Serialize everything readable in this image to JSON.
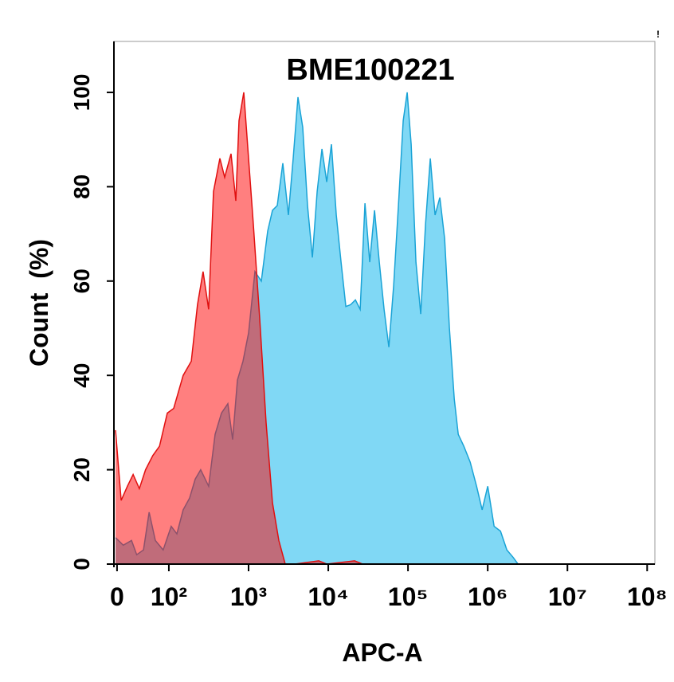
{
  "chart_data": {
    "type": "histogram-overlay",
    "title": "BME100221",
    "annotation": "!",
    "x_label": "APC-A",
    "y_label": "Count  (%)",
    "xscale": "symlog",
    "linthresh": 100,
    "linscale": 0.65,
    "xlim": [
      -6,
      125000000
    ],
    "xticks": [
      0,
      {
        "value": 100,
        "label": "10²"
      },
      {
        "value": 1000,
        "label": "10³"
      },
      {
        "value": 10000,
        "label": "10⁴"
      },
      {
        "value": 100000,
        "label": "10⁵"
      },
      {
        "value": 1000000,
        "label": "10⁶"
      },
      {
        "value": 10000000,
        "label": "10⁷"
      },
      {
        "value": 100000000,
        "label": "10⁸"
      }
    ],
    "ylim": [
      0,
      110.8
    ],
    "yticks": [
      0,
      20,
      40,
      60,
      80,
      100
    ],
    "series": [
      {
        "color": "#1aa3d6",
        "fill": "#80d8f5",
        "x": [
          -3,
          12,
          28,
          38,
          51,
          62,
          74,
          89,
          107,
          126,
          151,
          182,
          214,
          251,
          316,
          380,
          457,
          550,
          631,
          724,
          851,
          1000,
          1202,
          1445,
          1738,
          1995,
          2291,
          2692,
          3162,
          3631,
          4169,
          4786,
          5495,
          6310,
          7244,
          8318,
          9550,
          10960,
          12590,
          14450,
          16600,
          19050,
          21880,
          25120,
          28840,
          33110,
          38020,
          43650,
          50120,
          57540,
          66070,
          75860,
          87100,
          97720,
          109600,
          125900,
          144500,
          166000,
          190500,
          218800,
          251200,
          288400,
          331100,
          380200,
          426600,
          501200,
          602600,
          724400,
          851100,
          1000000,
          1202000,
          1445000,
          1738000,
          2089000,
          2399000
        ],
        "values": [
          5.6,
          4,
          5,
          2,
          3,
          11,
          5,
          3,
          8,
          6.4,
          11.5,
          14,
          18,
          20,
          16.5,
          27.5,
          32,
          34,
          26.4,
          39,
          43,
          49,
          62,
          60,
          70.6,
          75,
          76,
          85,
          74,
          86,
          99,
          92.6,
          76,
          65,
          79,
          88,
          81,
          89,
          74,
          64,
          54.6,
          55,
          56,
          54,
          76.5,
          64,
          75,
          64,
          54,
          46,
          59,
          76,
          94,
          100,
          89,
          64,
          53,
          72,
          86,
          74,
          77.7,
          69,
          50,
          35,
          27.5,
          25,
          21.6,
          16.5,
          11.5,
          16.5,
          8,
          7,
          3,
          1.4,
          0
        ]
      },
      {
        "color": "#e01010",
        "fill": "rgba(255,0,0,0.5)",
        "x": [
          -3,
          8,
          20,
          31,
          43,
          55,
          69,
          82,
          97,
          115,
          151,
          191,
          229,
          269,
          316,
          363,
          437,
          501,
          603,
          692,
          759,
          871,
          1000,
          1148,
          1380,
          1660,
          1995,
          2399,
          2884,
          3802,
          7586,
          9550,
          21380,
          26920
        ],
        "values": [
          28.4,
          13.5,
          16.5,
          19,
          16,
          20,
          23,
          25,
          32,
          33,
          40,
          43,
          55,
          62,
          54,
          79,
          86,
          82,
          87,
          77,
          94,
          100,
          86,
          72,
          52,
          30,
          13,
          5,
          0,
          0,
          0.7,
          0,
          0.7,
          0
        ]
      }
    ]
  }
}
